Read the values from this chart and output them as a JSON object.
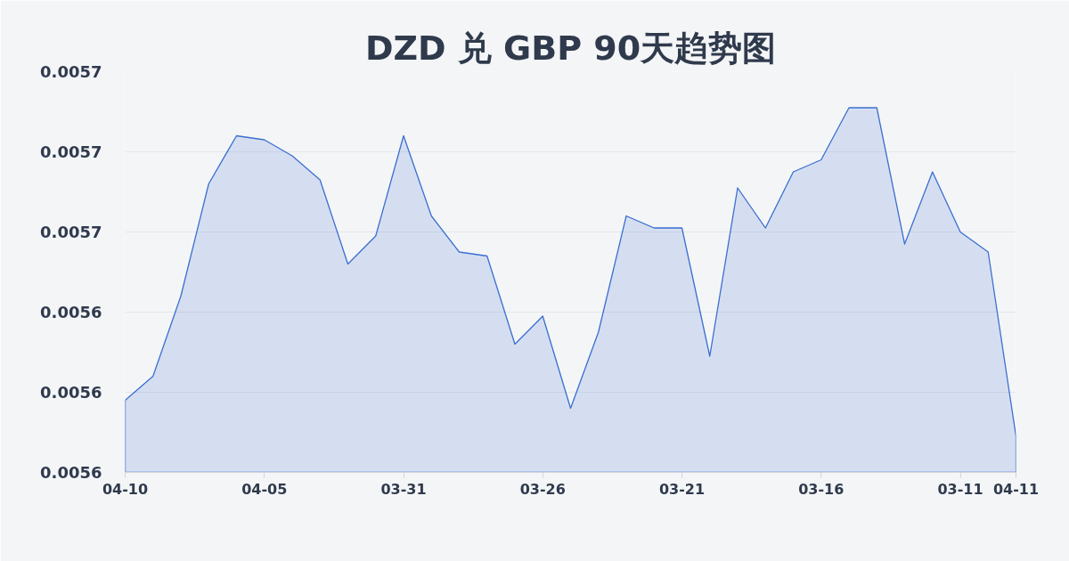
{
  "chart_data": {
    "type": "area",
    "title": "DZD 兑 GBP 90天趋势图",
    "categories": [
      "04-10",
      null,
      null,
      null,
      null,
      "04-05",
      null,
      null,
      null,
      null,
      "03-31",
      null,
      null,
      null,
      null,
      "03-26",
      null,
      null,
      null,
      null,
      "03-21",
      null,
      null,
      null,
      null,
      "03-16",
      null,
      null,
      null,
      null,
      "03-11",
      null,
      "04-11"
    ],
    "series": [
      {
        "color": "#3a6fd0",
        "values": [
          0.005618,
          0.005624,
          0.005644,
          0.005672,
          0.005684,
          0.005683,
          0.005679,
          0.005673,
          0.005652,
          0.005659,
          0.005684,
          0.005664,
          0.005655,
          0.005654,
          0.005632,
          0.005639,
          0.005616,
          0.005635,
          0.005664,
          0.005661,
          0.005661,
          0.005629,
          0.005671,
          0.005661,
          0.005675,
          0.005678,
          0.005691,
          0.005691,
          0.005657,
          0.005675,
          0.00566,
          0.005655,
          0.005609
        ]
      }
    ],
    "ylim": [
      0.0056,
      0.0057
    ],
    "yticks": [
      0.0056,
      {
        "value": 0.00562,
        "label": "0.0056"
      },
      {
        "value": 0.00564,
        "label": "0.0056"
      },
      {
        "value": 0.00566,
        "label": "0.0057"
      },
      {
        "value": 0.00568,
        "label": "0.0057"
      },
      0.0057
    ],
    "grid": "y"
  }
}
